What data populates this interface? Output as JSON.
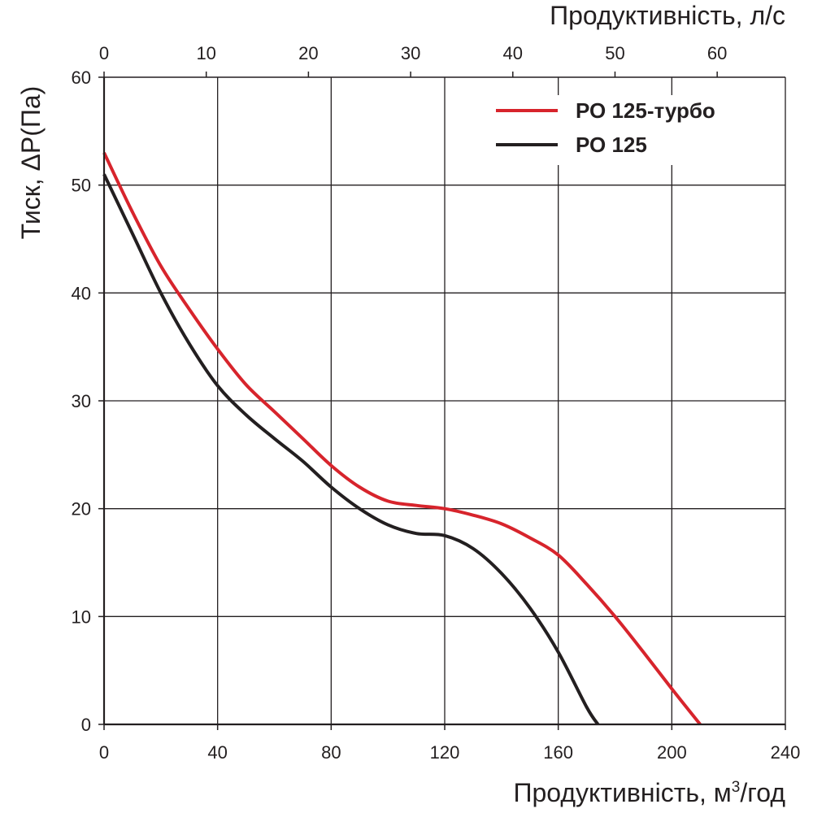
{
  "chart_data": {
    "type": "line",
    "x_bottom": {
      "label_main": "Продуктивність, м",
      "label_sup": "3",
      "label_tail": "/год",
      "range": [
        0,
        240
      ],
      "ticks": [
        0,
        40,
        80,
        120,
        160,
        200,
        240
      ]
    },
    "x_top": {
      "label": "Продуктивність, л/с",
      "range": [
        0,
        66.67
      ],
      "ticks": [
        0,
        10,
        20,
        30,
        40,
        50,
        60
      ]
    },
    "y": {
      "label": "Тиск, ΔP(Па)",
      "range": [
        0,
        60
      ],
      "ticks": [
        0,
        10,
        20,
        30,
        40,
        50,
        60
      ]
    },
    "grid": true,
    "legend_position": "top-right",
    "series": [
      {
        "name": "РО 125-турбо",
        "color": "#d7242c",
        "x": [
          0,
          10,
          20,
          30,
          40,
          50,
          60,
          70,
          80,
          90,
          100,
          110,
          120,
          130,
          140,
          150,
          160,
          170,
          180,
          190,
          200,
          210
        ],
        "y": [
          53,
          47.5,
          42.5,
          38.5,
          34.8,
          31.5,
          29,
          26.5,
          24,
          22,
          20.7,
          20.3,
          20,
          19.4,
          18.6,
          17.3,
          15.7,
          13,
          10,
          6.7,
          3.3,
          0
        ]
      },
      {
        "name": "РО 125",
        "color": "#231f20",
        "x": [
          0,
          10,
          20,
          30,
          40,
          50,
          60,
          70,
          80,
          90,
          100,
          110,
          120,
          130,
          140,
          150,
          160,
          170,
          174
        ],
        "y": [
          51,
          45.5,
          40,
          35.3,
          31.4,
          28.7,
          26.5,
          24.4,
          22,
          20,
          18.5,
          17.7,
          17.5,
          16.3,
          14,
          10.8,
          6.7,
          1.6,
          0
        ]
      }
    ]
  }
}
